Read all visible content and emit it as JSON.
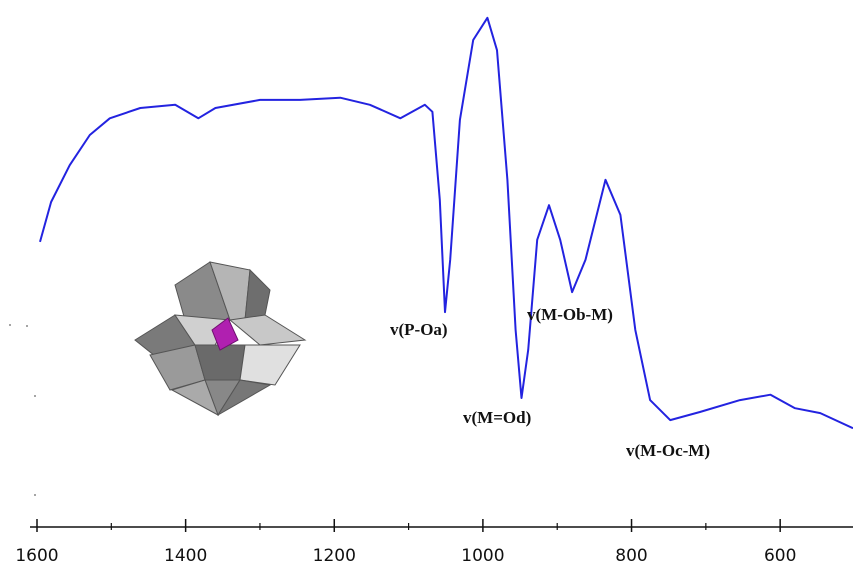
{
  "chart_data": {
    "type": "line",
    "x": [
      1596,
      1581,
      1556,
      1529,
      1502,
      1461,
      1414,
      1383,
      1360,
      1300,
      1246,
      1192,
      1152,
      1111,
      1078,
      1068,
      1058,
      1051,
      1044,
      1031,
      1013,
      994,
      981,
      967,
      956,
      948,
      939,
      927,
      911,
      896,
      880,
      862,
      835,
      815,
      795,
      775,
      748,
      708,
      654,
      613,
      580,
      546,
      502
    ],
    "series": [
      {
        "color": "#2323e0",
        "values": [
          55.2,
          62.6,
          69.4,
          75,
          78.1,
          80,
          80.6,
          78.1,
          80,
          81.5,
          81.5,
          81.9,
          80.6,
          78.1,
          80.6,
          79.3,
          63,
          42.2,
          51.9,
          77.8,
          92.6,
          96.7,
          90.7,
          66.7,
          38.9,
          26.3,
          35.2,
          55.6,
          62,
          55.6,
          45.9,
          51.9,
          66.7,
          60.2,
          38.9,
          25.9,
          22.2,
          23.7,
          25.9,
          26.9,
          24.4,
          23.5,
          20.7
        ]
      }
    ],
    "xlim": [
      1600,
      502
    ],
    "xticks": [
      1600,
      1400,
      1200,
      1000,
      800,
      600
    ],
    "xminor_ticks": [
      1500,
      1300,
      1100,
      900,
      700
    ],
    "ylim": [
      0,
      100
    ],
    "annotations": [
      "v(P-Oa)",
      "v(M=Od)",
      "v(M-Ob-M)",
      "v(M-Oc-M)"
    ]
  }
}
